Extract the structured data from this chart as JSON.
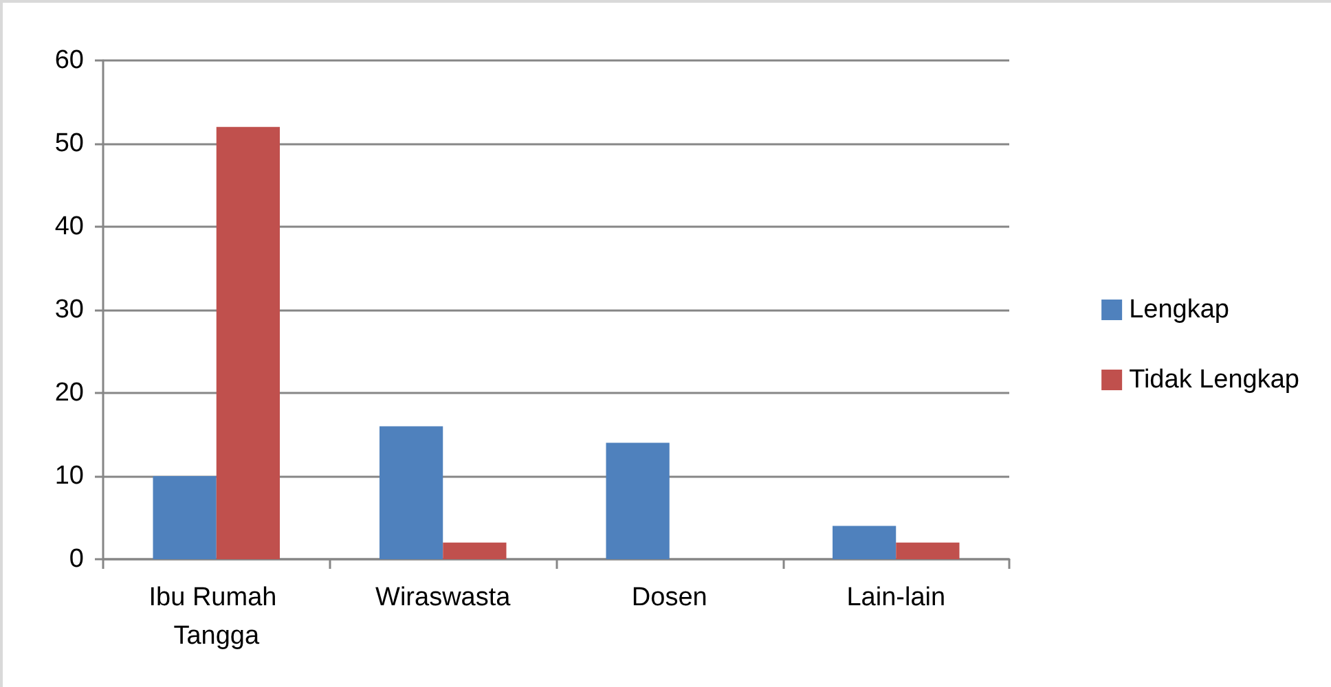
{
  "chart_data": {
    "type": "bar",
    "categories": [
      "Ibu Rumah Tangga",
      "Wiraswasta",
      "Dosen",
      "Lain-lain"
    ],
    "series": [
      {
        "name": "Lengkap",
        "color": "#4f81bd",
        "values": [
          10,
          16,
          14,
          4
        ]
      },
      {
        "name": "Tidak Lengkap",
        "color": "#c0504d",
        "values": [
          52,
          2,
          0,
          2
        ]
      }
    ],
    "ylim": [
      0,
      60
    ],
    "yticks": [
      0,
      10,
      20,
      30,
      40,
      50,
      60
    ],
    "grid": "y",
    "legend": "right"
  }
}
